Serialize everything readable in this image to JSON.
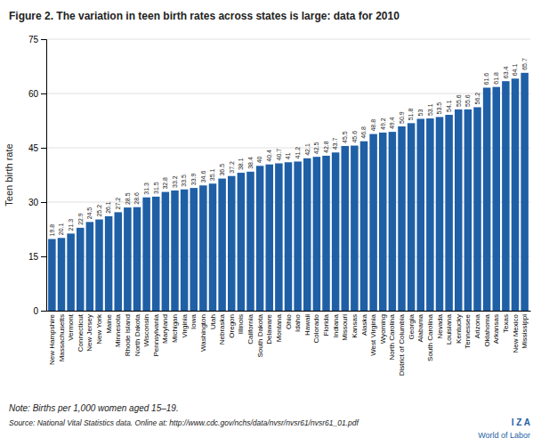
{
  "chart_data": {
    "type": "bar",
    "title": "Figure 2. The variation in teen birth rates across states is large: data for 2010",
    "y_label": "Teen birth rate",
    "annotations": [
      "Note: Births per 1,000 women aged 15–19.",
      "Source: National Vital Statistics data. Online at: http://www.cdc.gov/nchs/data/nvsr/nvsr61/nvsr61_01.pdf",
      "I Z A",
      "World of Labor"
    ],
    "color": "#1F5FA6",
    "ylim": [
      0,
      75
    ],
    "yticks": [
      0,
      15,
      30,
      45,
      60,
      75
    ],
    "grid": true,
    "data_labels": true,
    "categories": [
      "New Hampshire",
      "Massachusetts",
      "Vermont",
      "Connecticut",
      "New Jersey",
      "New York",
      "Maine",
      "Minnesota",
      "Rhode Island",
      "North Dakota",
      "Wisconsin",
      "Pennsylvania",
      "Maryland",
      "Michigan",
      "Virginia",
      "Iowa",
      "Washington",
      "Utah",
      "Nebraska",
      "Oregon",
      "Illinois",
      "California",
      "South Dakota",
      "Delaware",
      "Montana",
      "Ohio",
      "Idaho",
      "Hawaii",
      "Colorado",
      "Florida",
      "Indiana",
      "Missouri",
      "Kansas",
      "Alaska",
      "West Virginia",
      "Wyoming",
      "North Carolina",
      "District of Columbia",
      "Georgia",
      "Alabama",
      "South Carolina",
      "Nevada",
      "Louisiana",
      "Kentucky",
      "Tennessee",
      "Arizona",
      "Oklahoma",
      "Arkansas",
      "Texas",
      "New Mexico",
      "Mississippi"
    ],
    "values": [
      19.8,
      20.1,
      21.3,
      22.9,
      24.5,
      25.2,
      26.1,
      27.2,
      28.5,
      28.6,
      31.3,
      31.5,
      32.8,
      33.2,
      33.5,
      33.9,
      34.6,
      35.1,
      36.5,
      37.2,
      38.1,
      38.4,
      40.0,
      40.4,
      40.7,
      41.0,
      41.2,
      42.1,
      42.5,
      42.8,
      43.7,
      45.5,
      45.6,
      46.8,
      48.8,
      49.2,
      49.4,
      50.9,
      51.8,
      53.0,
      53.1,
      53.5,
      54.1,
      55.6,
      55.6,
      56.2,
      61.6,
      61.8,
      63.4,
      64.1,
      65.7
    ]
  }
}
